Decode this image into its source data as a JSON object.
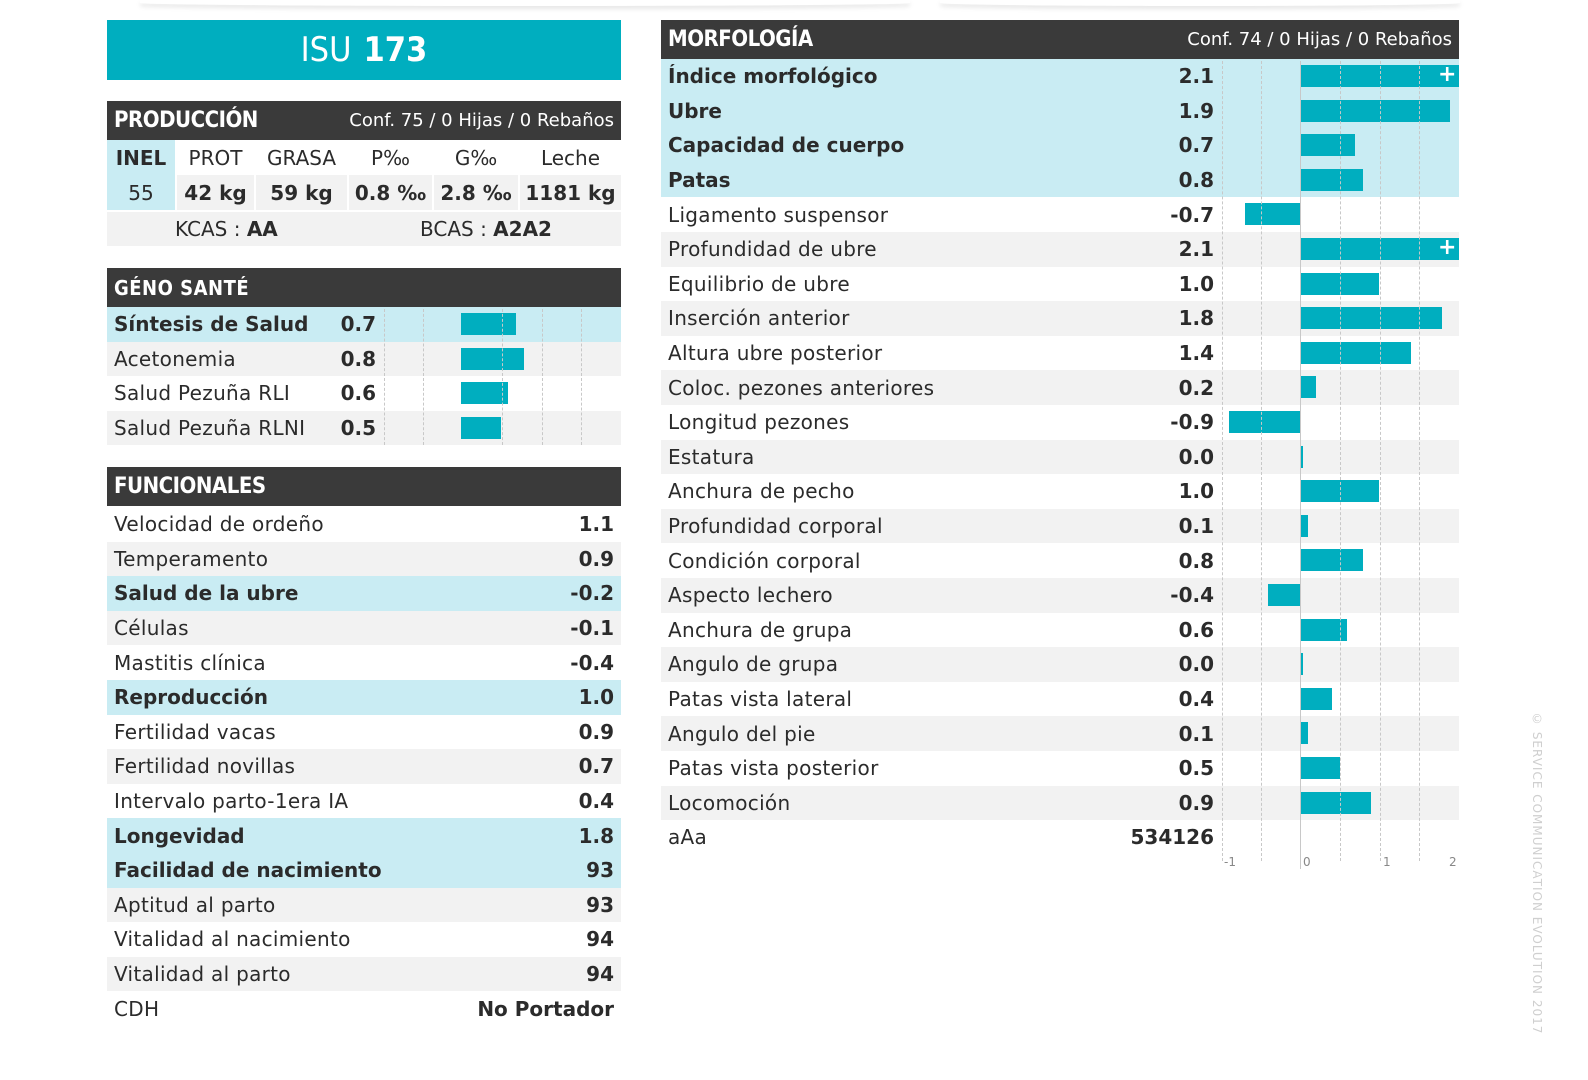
{
  "isu": {
    "label": "ISU",
    "value": "173"
  },
  "produccion": {
    "title": "PRODUCCIÓN",
    "conf": "Conf. 75 / 0 Hijas / 0 Rebaños",
    "headers": [
      "INEL",
      "PROT",
      "GRASA",
      "P‰",
      "G‰",
      "Leche"
    ],
    "values": [
      "55",
      "42 kg",
      "59 kg",
      "0.8 ‰",
      "2.8 ‰",
      "1181 kg"
    ],
    "kcas_label": "KCAS : ",
    "kcas_value": "AA",
    "bcas_label": "BCAS : ",
    "bcas_value": "A2A2"
  },
  "genosante": {
    "title": "GÉNO SANTÉ",
    "rows": [
      {
        "label": "Síntesis de Salud",
        "value": "0.7",
        "num": 0.7,
        "hl": true
      },
      {
        "label": "Acetonemia",
        "value": "0.8",
        "num": 0.8,
        "hl": false
      },
      {
        "label": "Salud Pezuña RLI",
        "value": "0.6",
        "num": 0.6,
        "hl": false
      },
      {
        "label": "Salud Pezuña RLNI",
        "value": "0.5",
        "num": 0.5,
        "hl": false
      }
    ]
  },
  "funcionales": {
    "title": "FUNCIONALES",
    "rows": [
      {
        "label": "Velocidad de ordeño",
        "value": "1.1",
        "hl": false
      },
      {
        "label": "Temperamento",
        "value": "0.9",
        "hl": false
      },
      {
        "label": "Salud de la ubre",
        "value": "-0.2",
        "hl": true
      },
      {
        "label": "Células",
        "value": "-0.1",
        "hl": false
      },
      {
        "label": "Mastitis clínica",
        "value": "-0.4",
        "hl": false
      },
      {
        "label": "Reproducción",
        "value": "1.0",
        "hl": true
      },
      {
        "label": "Fertilidad vacas",
        "value": "0.9",
        "hl": false
      },
      {
        "label": "Fertilidad novillas",
        "value": "0.7",
        "hl": false
      },
      {
        "label": "Intervalo parto-1era IA",
        "value": "0.4",
        "hl": false
      },
      {
        "label": "Longevidad",
        "value": "1.8",
        "hl": true
      },
      {
        "label": "Facilidad de nacimiento",
        "value": "93",
        "hl": true
      },
      {
        "label": "Aptitud al parto",
        "value": "93",
        "hl": false
      },
      {
        "label": "Vitalidad al nacimiento",
        "value": "94",
        "hl": false
      },
      {
        "label": "Vitalidad al parto",
        "value": "94",
        "hl": false
      },
      {
        "label": "CDH",
        "value": "No Portador",
        "hl": false
      }
    ]
  },
  "morfologia": {
    "title": "MORFOLOGÍA",
    "conf": "Conf. 74 / 0 Hijas / 0 Rebaños",
    "rows": [
      {
        "label": "Índice morfológico",
        "value": "2.1",
        "num": 2.1,
        "hl": true,
        "plus": true
      },
      {
        "label": "Ubre",
        "value": "1.9",
        "num": 1.9,
        "hl": true,
        "plus": false
      },
      {
        "label": "Capacidad de cuerpo",
        "value": "0.7",
        "num": 0.7,
        "hl": true,
        "plus": false
      },
      {
        "label": "Patas",
        "value": "0.8",
        "num": 0.8,
        "hl": true,
        "plus": false
      },
      {
        "label": "Ligamento suspensor",
        "value": "-0.7",
        "num": -0.7,
        "hl": false,
        "plus": false
      },
      {
        "label": "Profundidad de ubre",
        "value": "2.1",
        "num": 2.1,
        "hl": false,
        "plus": true
      },
      {
        "label": "Equilibrio de ubre",
        "value": "1.0",
        "num": 1.0,
        "hl": false,
        "plus": false
      },
      {
        "label": "Inserción anterior",
        "value": "1.8",
        "num": 1.8,
        "hl": false,
        "plus": false
      },
      {
        "label": "Altura ubre posterior",
        "value": "1.4",
        "num": 1.4,
        "hl": false,
        "plus": false
      },
      {
        "label": "Coloc. pezones anteriores",
        "value": "0.2",
        "num": 0.2,
        "hl": false,
        "plus": false
      },
      {
        "label": "Longitud pezones",
        "value": "-0.9",
        "num": -0.9,
        "hl": false,
        "plus": false
      },
      {
        "label": "Estatura",
        "value": "0.0",
        "num": 0.0,
        "hl": false,
        "plus": false
      },
      {
        "label": "Anchura de pecho",
        "value": "1.0",
        "num": 1.0,
        "hl": false,
        "plus": false
      },
      {
        "label": "Profundidad corporal",
        "value": "0.1",
        "num": 0.1,
        "hl": false,
        "plus": false
      },
      {
        "label": "Condición corporal",
        "value": "0.8",
        "num": 0.8,
        "hl": false,
        "plus": false
      },
      {
        "label": "Aspecto lechero",
        "value": "-0.4",
        "num": -0.4,
        "hl": false,
        "plus": false
      },
      {
        "label": "Anchura de grupa",
        "value": "0.6",
        "num": 0.6,
        "hl": false,
        "plus": false
      },
      {
        "label": "Angulo de grupa",
        "value": "0.0",
        "num": 0.0,
        "hl": false,
        "plus": false
      },
      {
        "label": "Patas vista lateral",
        "value": "0.4",
        "num": 0.4,
        "hl": false,
        "plus": false
      },
      {
        "label": "Angulo del pie",
        "value": "0.1",
        "num": 0.1,
        "hl": false,
        "plus": false
      },
      {
        "label": "Patas vista posterior",
        "value": "0.5",
        "num": 0.5,
        "hl": false,
        "plus": false
      },
      {
        "label": "Locomoción",
        "value": "0.9",
        "num": 0.9,
        "hl": false,
        "plus": false
      }
    ],
    "aaa_label": "aAa",
    "aaa_value": "534126",
    "axis_ticks": [
      "-1",
      "0",
      "1",
      "2"
    ]
  },
  "copyright": "© SERVICE COMMUNICATION EVOLUTION 2017",
  "colors": {
    "accent": "#00aebf",
    "header": "#3a3a3a",
    "highlight": "#c9ecf3",
    "stripe": "#f2f2f2"
  }
}
